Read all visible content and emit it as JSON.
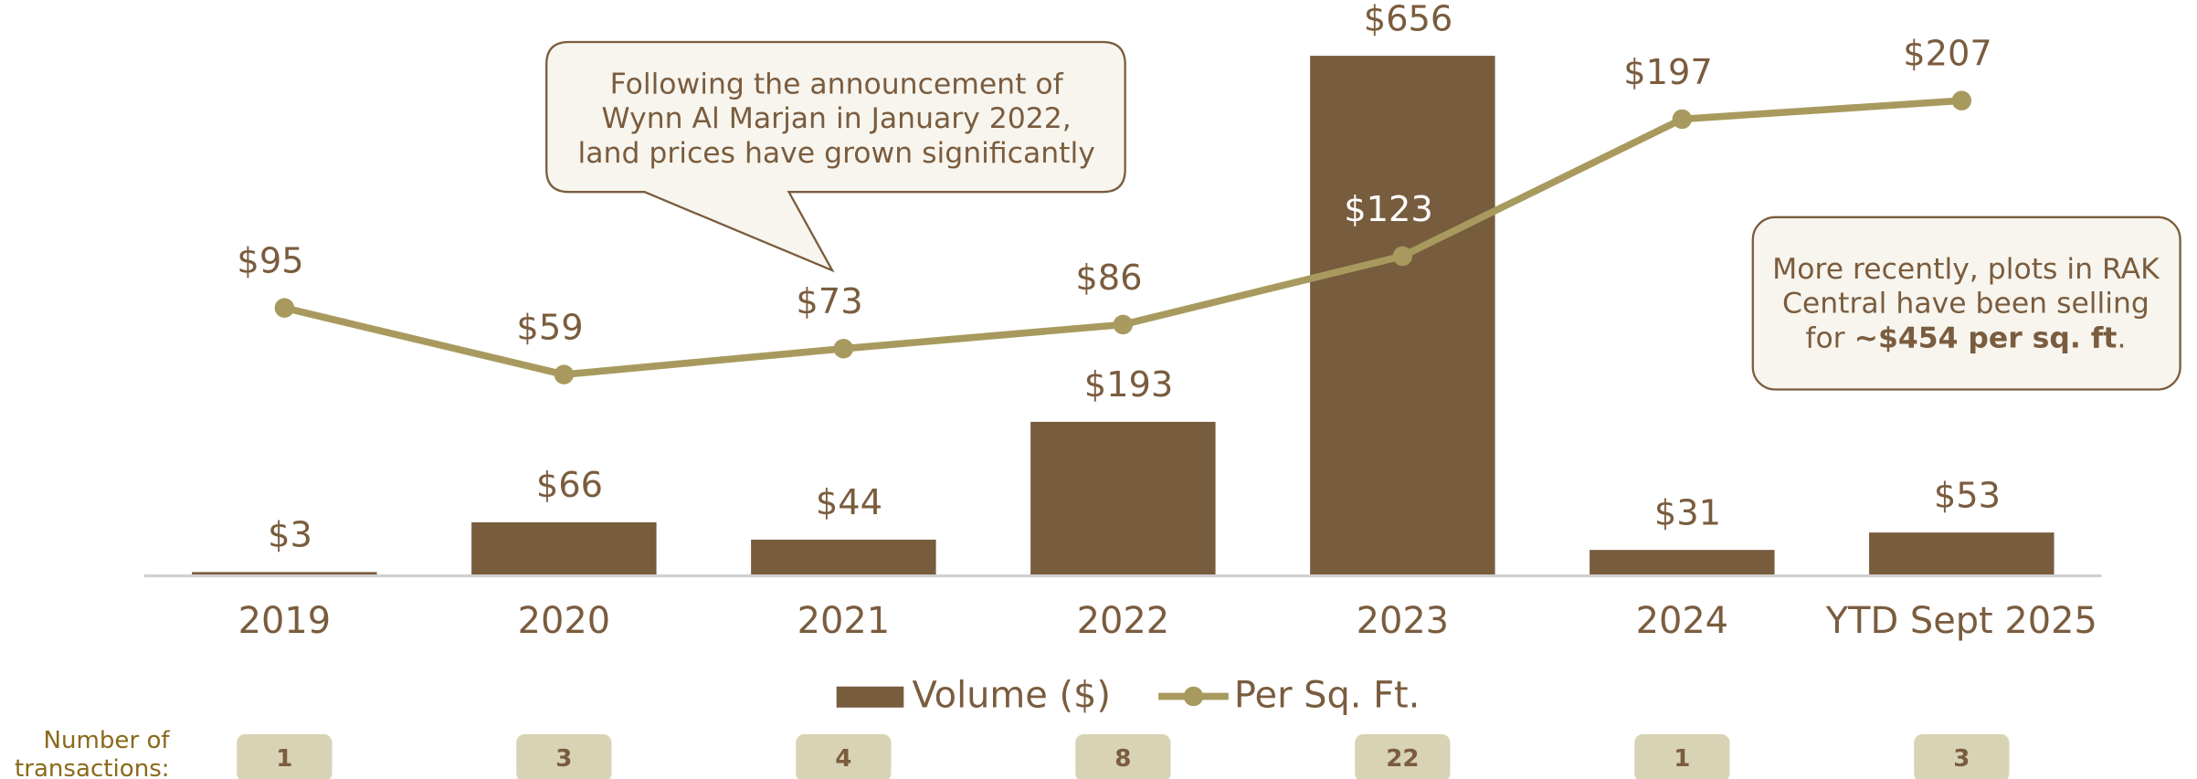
{
  "chart_data": {
    "type": "bar",
    "categories": [
      "2019",
      "2020",
      "2021",
      "2022",
      "2023",
      "2024",
      "YTD Sept 2025"
    ],
    "series": [
      {
        "name": "Volume ($)",
        "type": "bar",
        "color": "#785c3e",
        "values": [
          3,
          66,
          44,
          193,
          656,
          31,
          53
        ],
        "value_labels": [
          "$3",
          "$66",
          "$44",
          "$193",
          "$656",
          "$31",
          "$53"
        ]
      },
      {
        "name": "Per Sq. Ft.",
        "type": "line",
        "axis": "y2",
        "color": "#a89a5e",
        "values": [
          95,
          59,
          73,
          86,
          123,
          197,
          207
        ],
        "value_labels": [
          "$95",
          "$59",
          "$73",
          "$86",
          "$123",
          "$197",
          "$207"
        ]
      }
    ],
    "ylim": [
      0,
      700
    ],
    "y2lim": [
      -49,
      250
    ],
    "annotations": [
      {
        "lines": [
          "Following the announcement of",
          "Wynn Al Marjan in January 2022,",
          "land prices have grown significantly"
        ]
      },
      {
        "lines": [
          "More recently, plots in RAK",
          "Central have been selling"
        ],
        "last_line": [
          "for ",
          "~$454 per sq. ft",
          "."
        ]
      }
    ],
    "transactions": {
      "label": [
        "Number of",
        "transactions:"
      ],
      "values": [
        1,
        3,
        4,
        8,
        22,
        1,
        3
      ]
    }
  }
}
